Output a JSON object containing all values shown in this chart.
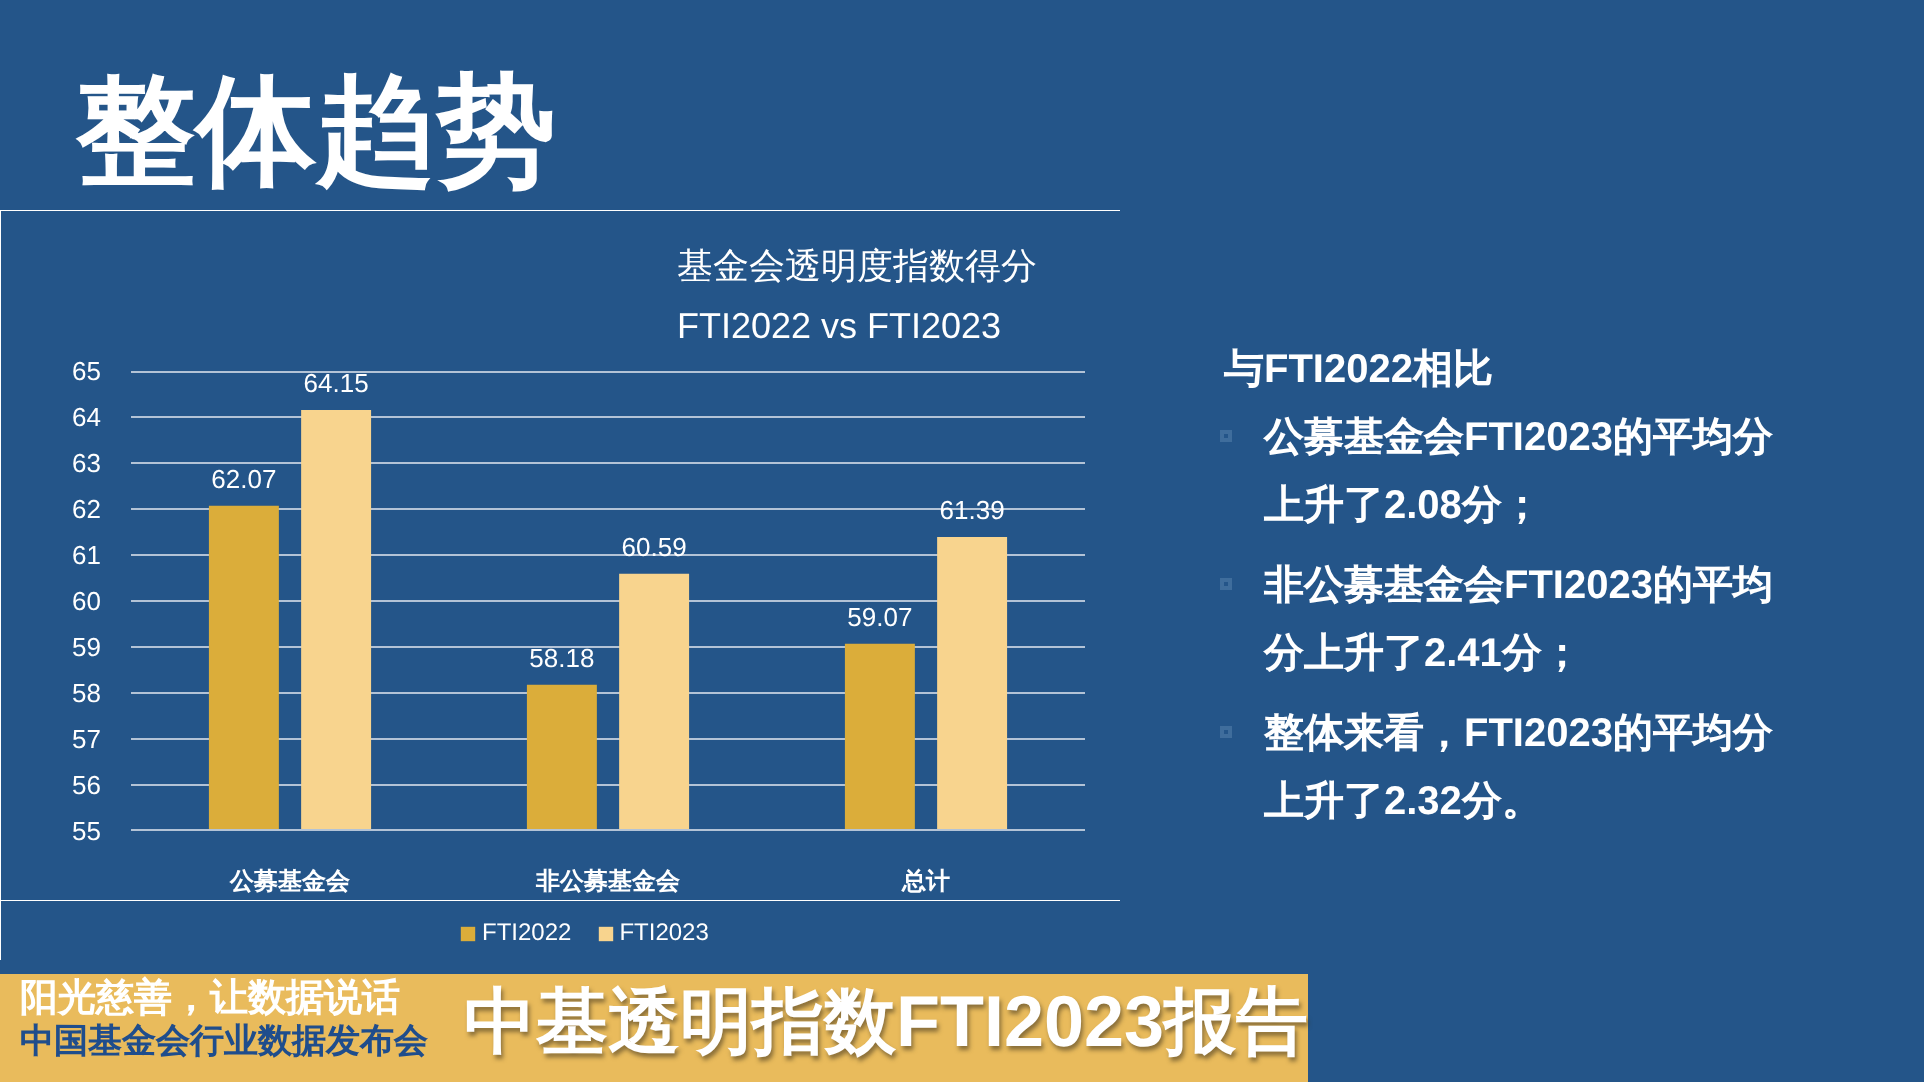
{
  "chart_data": {
    "type": "bar",
    "title": "整体趋势",
    "subtitle": "基金会透明度指数得分\nFTI2022 vs FTI2023",
    "categories": [
      "公募基金会",
      "非公募基金会",
      "总计"
    ],
    "series": [
      {
        "name": "FTI2022",
        "color": "#dbad3a",
        "values": [
          62.07,
          58.18,
          59.07
        ]
      },
      {
        "name": "FTI2023",
        "color": "#f8d48e",
        "values": [
          64.15,
          60.59,
          61.39
        ]
      }
    ],
    "ylim": [
      55,
      65
    ],
    "yticks": [
      55,
      56,
      57,
      58,
      59,
      60,
      61,
      62,
      63,
      64,
      65
    ],
    "grid": "y",
    "legend": "bottom",
    "data_labels": true,
    "annotations": [
      "与FTI2022相比",
      "公募基金会FTI2023的平均分上升了2.08分；",
      "非公募基金会FTI2023的平均分上升了2.41分；",
      "整体来看，FTI2023的平均分上升了2.32分。",
      "阳光慈善，让数据说话",
      "中国基金会行业数据发布会",
      "中基透明指数FTI2023报告"
    ]
  }
}
